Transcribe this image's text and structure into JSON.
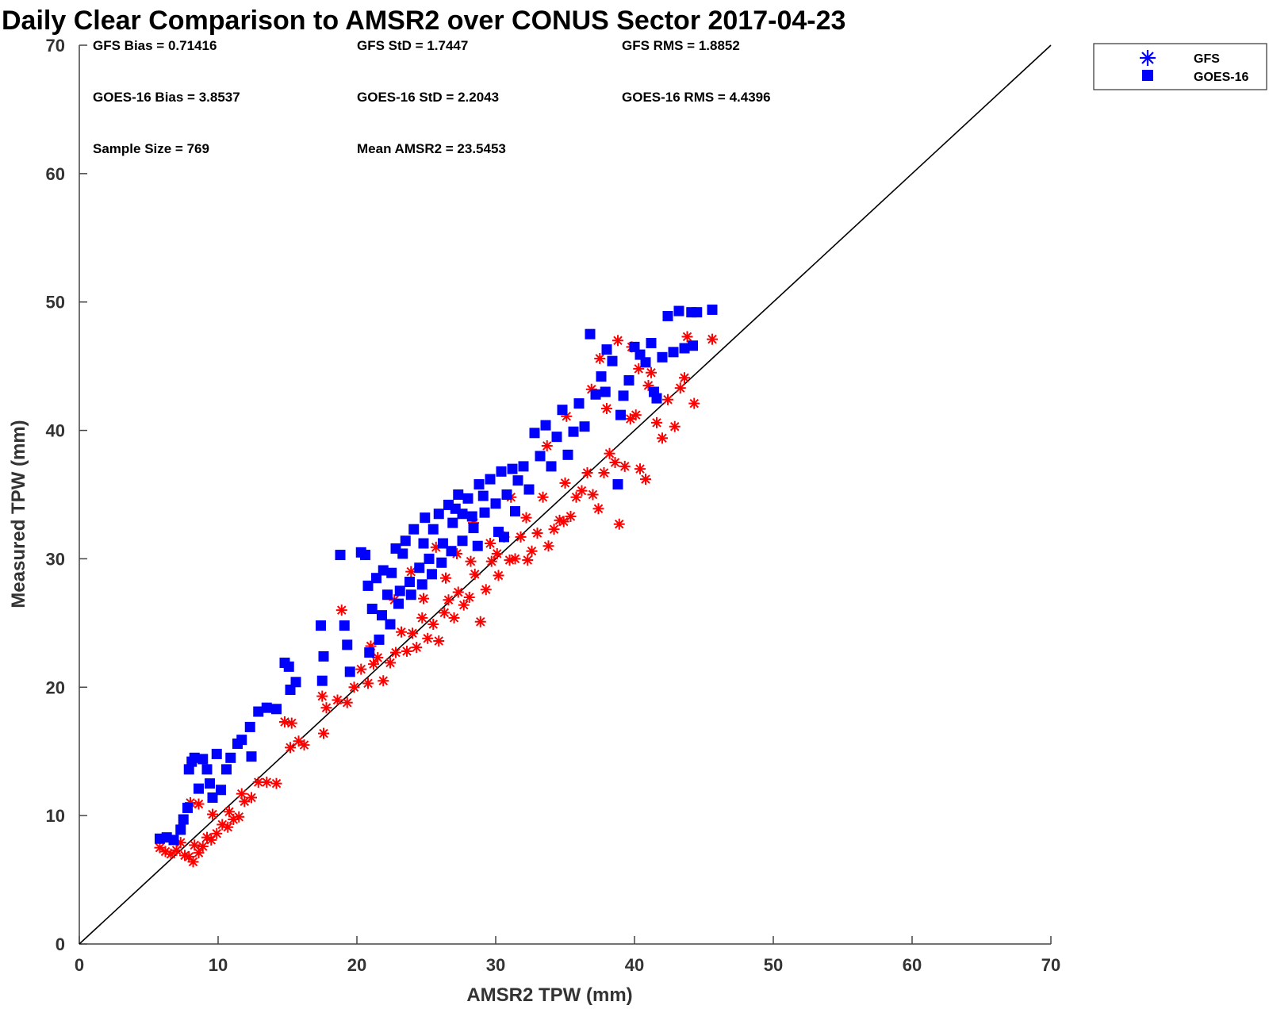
{
  "chart_data": {
    "type": "scatter",
    "title": "Daily Clear Comparison to AMSR2 over CONUS Sector 2017-04-23",
    "xlabel": "AMSR2 TPW (mm)",
    "ylabel": "Measured TPW (mm)",
    "xlim": [
      0,
      70
    ],
    "ylim": [
      0,
      70
    ],
    "xticks": [
      0,
      10,
      20,
      30,
      40,
      50,
      60,
      70
    ],
    "yticks": [
      0,
      10,
      20,
      30,
      40,
      50,
      60,
      70
    ],
    "reference_line": {
      "from": [
        0,
        0
      ],
      "to": [
        70,
        70
      ]
    },
    "legend": {
      "location": "outside top-right",
      "entries": [
        {
          "label": "GFS",
          "marker": "asterisk",
          "color": "#0000ff"
        },
        {
          "label": "GOES-16",
          "marker": "square",
          "color": "#0000ff"
        }
      ]
    },
    "stats": {
      "gfs_bias": "GFS Bias = 0.71416",
      "gfs_std": "GFS StD = 1.7447",
      "gfs_rms": "GFS RMS = 1.8852",
      "goes_bias": "GOES-16 Bias = 3.8537",
      "goes_std": "GOES-16 StD = 2.2043",
      "goes_rms": "GOES-16 RMS = 4.4396",
      "sample_size": "Sample Size = 769",
      "mean_amsr2": "Mean AMSR2 = 23.5453"
    },
    "series": [
      {
        "name": "GFS",
        "marker": "asterisk",
        "color": "#ff0000",
        "points": [
          [
            5.8,
            7.5
          ],
          [
            6.2,
            7.2
          ],
          [
            6.6,
            7.0
          ],
          [
            7.0,
            7.3
          ],
          [
            7.3,
            7.9
          ],
          [
            7.6,
            6.9
          ],
          [
            7.9,
            6.8
          ],
          [
            8.2,
            6.4
          ],
          [
            8.3,
            7.7
          ],
          [
            8.6,
            7.1
          ],
          [
            8.9,
            7.6
          ],
          [
            9.2,
            8.3
          ],
          [
            9.5,
            8.1
          ],
          [
            9.9,
            8.6
          ],
          [
            10.3,
            9.3
          ],
          [
            10.7,
            9.1
          ],
          [
            11.1,
            9.7
          ],
          [
            11.5,
            9.9
          ],
          [
            11.9,
            11.1
          ],
          [
            12.4,
            11.4
          ],
          [
            12.9,
            12.6
          ],
          [
            13.5,
            12.6
          ],
          [
            14.2,
            12.5
          ],
          [
            8.0,
            11.0
          ],
          [
            8.6,
            10.9
          ],
          [
            9.6,
            10.1
          ],
          [
            10.8,
            10.3
          ],
          [
            11.7,
            11.7
          ],
          [
            14.8,
            17.3
          ],
          [
            15.3,
            17.2
          ],
          [
            15.2,
            15.3
          ],
          [
            15.8,
            15.8
          ],
          [
            16.2,
            15.5
          ],
          [
            17.5,
            19.3
          ],
          [
            17.8,
            18.4
          ],
          [
            17.6,
            16.4
          ],
          [
            18.6,
            19.0
          ],
          [
            19.3,
            18.8
          ],
          [
            18.9,
            26.0
          ],
          [
            19.8,
            20.0
          ],
          [
            20.3,
            21.4
          ],
          [
            20.8,
            20.3
          ],
          [
            21.2,
            21.8
          ],
          [
            21.5,
            22.3
          ],
          [
            21.9,
            20.5
          ],
          [
            22.4,
            21.9
          ],
          [
            22.8,
            22.7
          ],
          [
            23.2,
            24.3
          ],
          [
            23.6,
            22.8
          ],
          [
            24.0,
            24.2
          ],
          [
            24.3,
            23.1
          ],
          [
            24.7,
            25.4
          ],
          [
            25.1,
            23.8
          ],
          [
            25.5,
            24.9
          ],
          [
            25.9,
            23.6
          ],
          [
            26.3,
            25.8
          ],
          [
            26.6,
            26.8
          ],
          [
            27.0,
            25.4
          ],
          [
            27.3,
            27.4
          ],
          [
            27.7,
            26.4
          ],
          [
            28.1,
            27.0
          ],
          [
            28.5,
            28.8
          ],
          [
            28.9,
            25.1
          ],
          [
            29.3,
            27.6
          ],
          [
            29.7,
            29.8
          ],
          [
            30.1,
            30.4
          ],
          [
            30.6,
            31.7
          ],
          [
            31.0,
            29.9
          ],
          [
            31.4,
            30.0
          ],
          [
            31.8,
            31.7
          ],
          [
            32.2,
            33.2
          ],
          [
            32.6,
            30.6
          ],
          [
            33.0,
            32.0
          ],
          [
            33.4,
            34.8
          ],
          [
            33.8,
            31.0
          ],
          [
            34.2,
            32.3
          ],
          [
            34.6,
            33.0
          ],
          [
            35.0,
            35.9
          ],
          [
            35.4,
            33.3
          ],
          [
            35.8,
            34.8
          ],
          [
            36.2,
            35.3
          ],
          [
            36.6,
            36.7
          ],
          [
            37.0,
            35.0
          ],
          [
            37.4,
            33.9
          ],
          [
            37.8,
            36.7
          ],
          [
            38.2,
            38.2
          ],
          [
            38.6,
            37.5
          ],
          [
            38.9,
            32.7
          ],
          [
            39.3,
            37.2
          ],
          [
            39.7,
            40.9
          ],
          [
            40.1,
            41.2
          ],
          [
            40.4,
            37.0
          ],
          [
            40.8,
            36.2
          ],
          [
            41.2,
            44.5
          ],
          [
            41.6,
            40.6
          ],
          [
            42.0,
            39.4
          ],
          [
            42.4,
            42.4
          ],
          [
            42.9,
            40.3
          ],
          [
            43.3,
            43.3
          ],
          [
            43.6,
            44.1
          ],
          [
            43.8,
            47.3
          ],
          [
            44.3,
            42.1
          ],
          [
            45.6,
            47.1
          ],
          [
            37.5,
            45.6
          ],
          [
            38.8,
            47.0
          ],
          [
            39.8,
            46.5
          ],
          [
            36.9,
            43.2
          ],
          [
            38.0,
            41.7
          ],
          [
            40.3,
            44.8
          ],
          [
            41.0,
            43.5
          ],
          [
            23.9,
            29.0
          ],
          [
            25.7,
            30.9
          ],
          [
            27.2,
            30.4
          ],
          [
            28.4,
            32.8
          ],
          [
            29.6,
            31.2
          ],
          [
            31.1,
            34.8
          ],
          [
            22.7,
            26.8
          ],
          [
            26.4,
            28.5
          ],
          [
            33.7,
            38.8
          ],
          [
            35.1,
            41.1
          ],
          [
            21.0,
            23.2
          ],
          [
            24.8,
            26.9
          ],
          [
            28.2,
            29.8
          ],
          [
            30.2,
            28.7
          ],
          [
            32.3,
            29.9
          ],
          [
            34.9,
            32.9
          ]
        ]
      },
      {
        "name": "GOES-16",
        "marker": "square",
        "color": "#0000ff",
        "points": [
          [
            5.8,
            8.2
          ],
          [
            6.3,
            8.3
          ],
          [
            6.8,
            8.1
          ],
          [
            7.3,
            8.9
          ],
          [
            7.5,
            9.7
          ],
          [
            7.8,
            10.6
          ],
          [
            7.9,
            13.6
          ],
          [
            8.1,
            14.2
          ],
          [
            8.3,
            14.5
          ],
          [
            8.6,
            12.1
          ],
          [
            8.9,
            14.4
          ],
          [
            9.2,
            13.6
          ],
          [
            9.4,
            12.5
          ],
          [
            9.6,
            11.4
          ],
          [
            9.9,
            14.8
          ],
          [
            10.2,
            12.0
          ],
          [
            10.6,
            13.6
          ],
          [
            10.9,
            14.5
          ],
          [
            11.4,
            15.6
          ],
          [
            11.7,
            15.9
          ],
          [
            12.4,
            14.6
          ],
          [
            12.3,
            16.9
          ],
          [
            12.9,
            18.1
          ],
          [
            13.5,
            18.4
          ],
          [
            14.2,
            18.3
          ],
          [
            14.8,
            21.9
          ],
          [
            15.1,
            21.6
          ],
          [
            15.2,
            19.8
          ],
          [
            15.6,
            20.4
          ],
          [
            17.4,
            24.8
          ],
          [
            17.6,
            22.4
          ],
          [
            17.5,
            20.5
          ],
          [
            18.8,
            30.3
          ],
          [
            19.1,
            24.8
          ],
          [
            19.3,
            23.3
          ],
          [
            19.5,
            21.2
          ],
          [
            20.3,
            30.5
          ],
          [
            20.6,
            30.3
          ],
          [
            20.8,
            27.9
          ],
          [
            21.1,
            26.1
          ],
          [
            21.4,
            28.5
          ],
          [
            21.8,
            25.6
          ],
          [
            22.2,
            27.2
          ],
          [
            22.5,
            28.9
          ],
          [
            22.8,
            30.8
          ],
          [
            23.1,
            27.5
          ],
          [
            23.5,
            31.4
          ],
          [
            23.8,
            28.2
          ],
          [
            24.1,
            32.3
          ],
          [
            24.5,
            29.3
          ],
          [
            24.8,
            31.2
          ],
          [
            25.2,
            30.0
          ],
          [
            25.5,
            32.3
          ],
          [
            25.9,
            33.5
          ],
          [
            26.2,
            31.2
          ],
          [
            26.6,
            34.2
          ],
          [
            26.9,
            32.8
          ],
          [
            27.3,
            35.0
          ],
          [
            27.6,
            33.5
          ],
          [
            28.0,
            34.7
          ],
          [
            28.4,
            32.4
          ],
          [
            28.8,
            35.8
          ],
          [
            29.2,
            33.6
          ],
          [
            29.6,
            36.2
          ],
          [
            30.0,
            34.3
          ],
          [
            30.4,
            36.8
          ],
          [
            30.8,
            35.0
          ],
          [
            31.2,
            37.0
          ],
          [
            31.6,
            36.1
          ],
          [
            32.0,
            37.2
          ],
          [
            32.4,
            35.4
          ],
          [
            32.8,
            39.8
          ],
          [
            33.2,
            38.0
          ],
          [
            33.6,
            40.4
          ],
          [
            34.0,
            37.2
          ],
          [
            34.4,
            39.5
          ],
          [
            34.8,
            41.6
          ],
          [
            35.2,
            38.1
          ],
          [
            35.6,
            39.9
          ],
          [
            36.0,
            42.1
          ],
          [
            36.4,
            40.3
          ],
          [
            36.8,
            47.5
          ],
          [
            37.2,
            42.8
          ],
          [
            37.6,
            44.2
          ],
          [
            38.0,
            46.3
          ],
          [
            38.4,
            45.4
          ],
          [
            38.8,
            35.8
          ],
          [
            39.2,
            42.7
          ],
          [
            39.6,
            43.9
          ],
          [
            40.0,
            46.5
          ],
          [
            40.4,
            45.9
          ],
          [
            40.8,
            45.3
          ],
          [
            41.2,
            46.8
          ],
          [
            41.6,
            42.5
          ],
          [
            42.0,
            45.7
          ],
          [
            42.4,
            48.9
          ],
          [
            42.8,
            46.1
          ],
          [
            43.2,
            49.3
          ],
          [
            43.6,
            46.4
          ],
          [
            44.1,
            49.2
          ],
          [
            44.5,
            49.2
          ],
          [
            45.6,
            49.4
          ],
          [
            44.2,
            46.6
          ],
          [
            39.0,
            41.2
          ],
          [
            41.4,
            43.0
          ],
          [
            37.9,
            43.0
          ],
          [
            20.9,
            22.7
          ],
          [
            21.6,
            23.7
          ],
          [
            22.4,
            24.9
          ],
          [
            23.0,
            26.5
          ],
          [
            23.9,
            27.2
          ],
          [
            24.7,
            28.0
          ],
          [
            25.4,
            28.8
          ],
          [
            26.1,
            29.7
          ],
          [
            26.8,
            30.6
          ],
          [
            27.6,
            31.4
          ],
          [
            28.3,
            33.3
          ],
          [
            29.1,
            34.9
          ],
          [
            30.2,
            32.1
          ],
          [
            31.4,
            33.7
          ],
          [
            21.9,
            29.1
          ],
          [
            23.3,
            30.4
          ],
          [
            24.9,
            33.2
          ],
          [
            27.1,
            33.9
          ],
          [
            28.7,
            31.0
          ],
          [
            30.6,
            31.7
          ]
        ]
      }
    ]
  }
}
